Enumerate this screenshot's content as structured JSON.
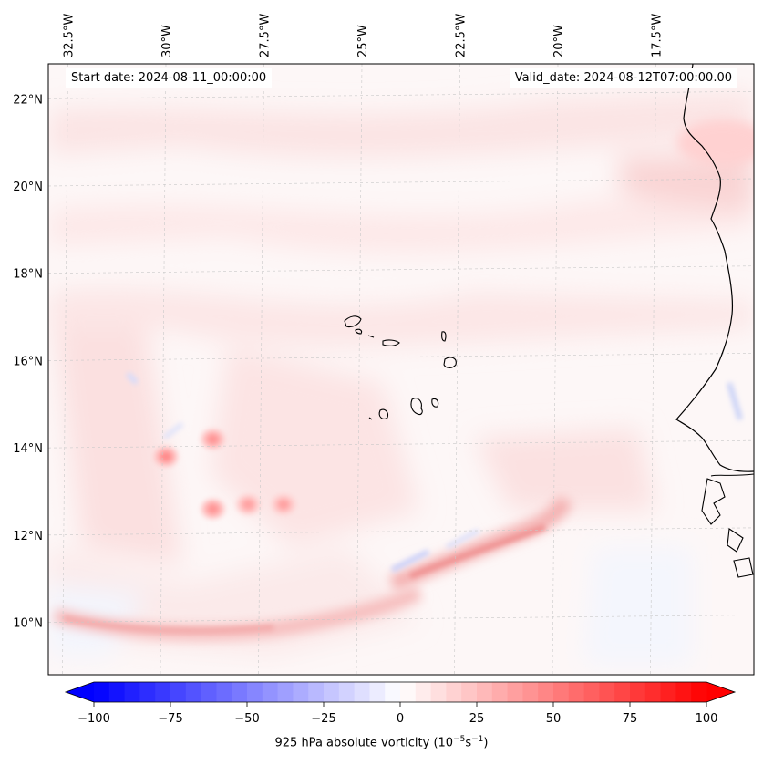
{
  "map": {
    "projection": "Mercator-like geographic map",
    "extent": {
      "lon_min": -33.0,
      "lon_max": -15.0,
      "lat_min": 8.8,
      "lat_max": 22.8
    },
    "lon_ticks": [
      {
        "value": -32.5,
        "label": "32.5°W"
      },
      {
        "value": -30.0,
        "label": "30°W"
      },
      {
        "value": -27.5,
        "label": "27.5°W"
      },
      {
        "value": -25.0,
        "label": "25°W"
      },
      {
        "value": -22.5,
        "label": "22.5°W"
      },
      {
        "value": -20.0,
        "label": "20°W"
      },
      {
        "value": -17.5,
        "label": "17.5°W"
      }
    ],
    "lat_ticks": [
      {
        "value": 22,
        "label": "22°N"
      },
      {
        "value": 20,
        "label": "20°N"
      },
      {
        "value": 18,
        "label": "18°N"
      },
      {
        "value": 16,
        "label": "16°N"
      },
      {
        "value": 14,
        "label": "14°N"
      },
      {
        "value": 12,
        "label": "12°N"
      },
      {
        "value": 10,
        "label": "10°N"
      }
    ],
    "gridlines": "dashed light gray",
    "features": [
      "West African coastline",
      "Cape Verde islands"
    ]
  },
  "header": {
    "start_date": "Start date: 2024-08-11_00:00:00",
    "valid_date": "Valid_date: 2024-08-12T07:00:00.00"
  },
  "colorbar": {
    "label_prefix": "925 hPa absolute vorticity (10",
    "label_exp1": "−5",
    "label_mid": "s",
    "label_exp2": "−1",
    "label_suffix": ")",
    "min": -100,
    "max": 100,
    "extend": "both",
    "ticks": [
      -100,
      -75,
      -50,
      -25,
      0,
      25,
      50,
      75,
      100
    ],
    "tick_labels": [
      "−100",
      "−75",
      "−50",
      "−25",
      "0",
      "25",
      "50",
      "75",
      "100"
    ],
    "colormap": "bwr",
    "color_min": "#0000ff",
    "color_mid": "#ffffff",
    "color_max": "#ff0000"
  },
  "vorticity_features": [
    {
      "name": "ITCZ southern arc",
      "lon": -28.5,
      "lat": 9.8,
      "value": 22
    },
    {
      "name": "band SW of Cape Verde",
      "lon": -21.5,
      "lat": 11.8,
      "value": 30
    },
    {
      "name": "vortex chain 1",
      "lon": -30.0,
      "lat": 13.8,
      "value": 35
    },
    {
      "name": "vortex chain 2",
      "lon": -28.8,
      "lat": 14.2,
      "value": 32
    },
    {
      "name": "vortex chain 3",
      "lon": -28.8,
      "lat": 12.6,
      "value": 32
    },
    {
      "name": "vortex chain 4",
      "lon": -27.9,
      "lat": 12.7,
      "value": 28
    },
    {
      "name": "vortex chain 5",
      "lon": -27.0,
      "lat": 12.7,
      "value": 28
    },
    {
      "name": "coastal maximum",
      "lon": -15.8,
      "lat": 21.0,
      "value": 18
    },
    {
      "name": "negative streak",
      "lon": -22.5,
      "lat": 11.8,
      "value": -12
    }
  ]
}
